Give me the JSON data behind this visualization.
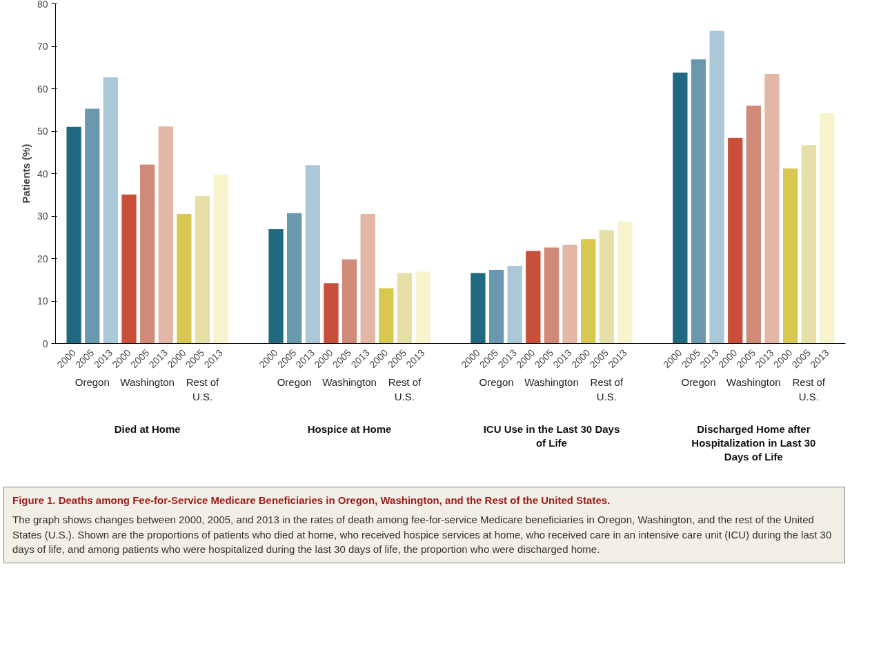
{
  "chart_data": {
    "type": "bar",
    "title": "Figure 1. Deaths among Fee-for-Service Medicare Beneficiaries in Oregon, Washington, and the Rest of the United States.",
    "ylabel": "Patients (%)",
    "categories": [
      "2000",
      "2005",
      "2013",
      "2000",
      "2005",
      "2013",
      "2000",
      "2005",
      "2013",
      null,
      null,
      "2000",
      "2005",
      "2013",
      "2000",
      "2005",
      "2013",
      "2000",
      "2005",
      "2013",
      null,
      null,
      "2000",
      "2005",
      "2013",
      "2000",
      "2005",
      "2013",
      "2000",
      "2005",
      "2013",
      null,
      null,
      "2000",
      "2005",
      "2013",
      "2000",
      "2005",
      "2013",
      "2000",
      "2005",
      "2013"
    ],
    "values": [
      51.0,
      55.3,
      62.7,
      35.1,
      42.1,
      51.1,
      30.5,
      34.7,
      39.7,
      null,
      null,
      26.9,
      30.7,
      42.0,
      14.2,
      19.8,
      30.5,
      13.0,
      16.6,
      16.9,
      null,
      null,
      16.6,
      17.3,
      18.3,
      21.8,
      22.6,
      23.2,
      24.6,
      26.7,
      28.7,
      null,
      null,
      63.8,
      66.9,
      73.6,
      48.4,
      56.0,
      63.5,
      41.2,
      46.7,
      54.2
    ],
    "colors": [
      "#216980",
      "#6a98ae",
      "#abc8d8",
      "#c8503a",
      "#d08a78",
      "#e3b6a6",
      "#d8c850",
      "#e6dfa8",
      "#f7f3cc",
      null,
      null,
      "#216980",
      "#6a98ae",
      "#abc8d8",
      "#c8503a",
      "#d08a78",
      "#e3b6a6",
      "#d8c850",
      "#e6dfa8",
      "#f7f3cc",
      null,
      null,
      "#216980",
      "#6a98ae",
      "#abc8d8",
      "#c8503a",
      "#d08a78",
      "#e3b6a6",
      "#d8c850",
      "#e6dfa8",
      "#f7f3cc",
      null,
      null,
      "#216980",
      "#6a98ae",
      "#abc8d8",
      "#c8503a",
      "#d08a78",
      "#e3b6a6",
      "#d8c850",
      "#e6dfa8",
      "#f7f3cc"
    ],
    "ylim": [
      0,
      80
    ],
    "yticks": [
      0,
      10,
      20,
      30,
      40,
      50,
      60,
      70,
      80
    ],
    "grid": false,
    "annotations": [
      "Oregon",
      "Washington",
      "Rest of U.S.",
      "Oregon",
      "Washington",
      "Rest of U.S.",
      "Oregon",
      "Washington",
      "Rest of U.S.",
      "Oregon",
      "Washington",
      "Rest of U.S.",
      "Died at Home",
      "Hospice at Home",
      "ICU Use in the Last 30 Days of Life",
      "Discharged Home after Hospitalization in Last 30 Days of Life",
      "The graph shows changes between 2000, 2005, and 2013 in the rates of death among fee-for-service Medicare beneficiaries in Oregon, Washington, and the rest of the United States (U.S.). Shown are the proportions of patients who died at home, who received hospice services at home, who received care in an intensive care unit (ICU) during the last 30 days of life, and among patients who were hospitalized during the last 30 days of life, the proportion who were discharged home."
    ]
  }
}
